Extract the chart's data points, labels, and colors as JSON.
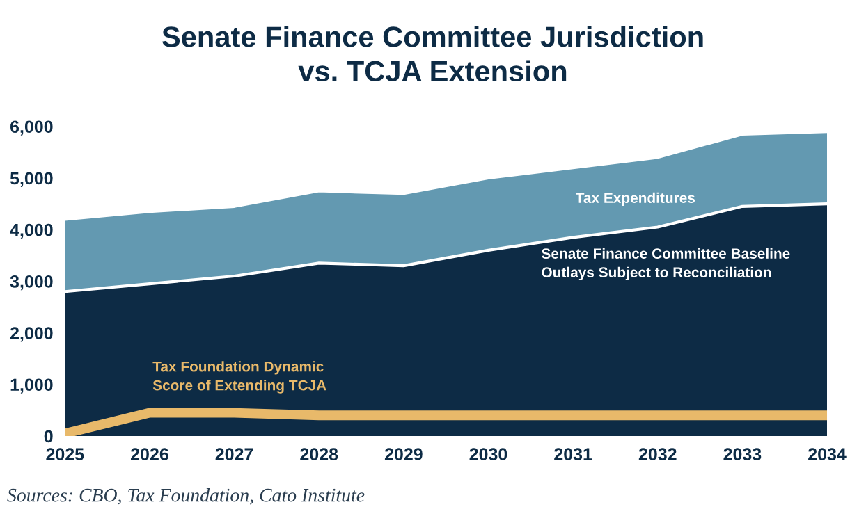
{
  "chart_data": {
    "type": "area",
    "stacked": true,
    "title": "Senate Finance Committee Jurisdiction\nvs. TCJA Extension",
    "categories": [
      "2025",
      "2026",
      "2027",
      "2028",
      "2029",
      "2030",
      "2031",
      "2032",
      "2033",
      "2034"
    ],
    "series": [
      {
        "name": "Senate Finance Committee Baseline\nOutlays Subject to Reconciliation",
        "color": "#0d2b45",
        "values": [
          2800,
          2950,
          3100,
          3350,
          3300,
          3600,
          3850,
          4050,
          4450,
          4500
        ]
      },
      {
        "name": "Tax Expenditures",
        "color": "#6399b1",
        "values": [
          1400,
          1400,
          1350,
          1400,
          1400,
          1400,
          1350,
          1350,
          1400,
          1400
        ]
      },
      {
        "name": "Tax Foundation Dynamic\nScore of Extending TCJA",
        "type": "line",
        "color": "#e8b96a",
        "values": [
          50,
          450,
          450,
          400,
          400,
          400,
          400,
          400,
          400,
          400
        ]
      }
    ],
    "ylim": [
      0,
      6000
    ],
    "yticks": [
      0,
      {
        "value": 1000,
        "label": "1,000"
      },
      {
        "value": 2000,
        "label": "2,000"
      },
      {
        "value": 3000,
        "label": "3,000"
      },
      {
        "value": 4000,
        "label": "4,000"
      },
      {
        "value": 5000,
        "label": "5,000"
      },
      {
        "value": 6000,
        "label": "6,000"
      }
    ],
    "grid": false,
    "legend": false,
    "annotations": [
      "Sources: CBO, Tax Foundation, Cato Institute"
    ]
  }
}
